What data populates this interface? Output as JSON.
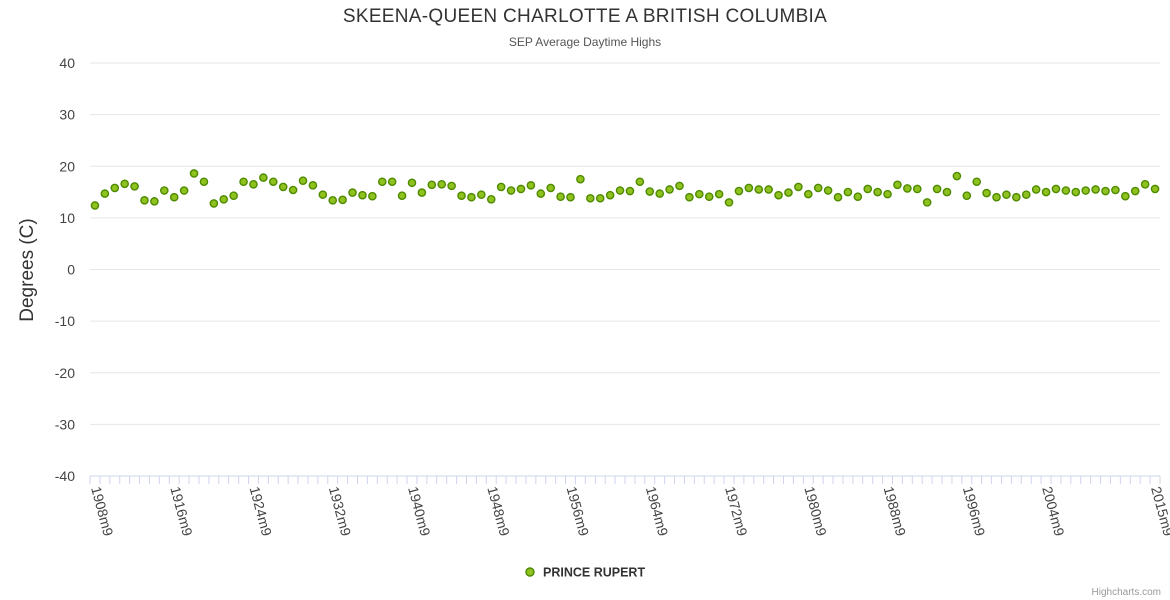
{
  "chart_data": {
    "type": "scatter",
    "title": "SKEENA-QUEEN CHARLOTTE A BRITISH COLUMBIA",
    "subtitle": "SEP Average Daytime Highs",
    "ylabel": "Degrees (C)",
    "xlabel": "",
    "ylim": [
      -40,
      40
    ],
    "yticks": [
      -40,
      -30,
      -20,
      -10,
      0,
      10,
      20,
      30,
      40
    ],
    "xticks": [
      "1908m9",
      "1916m9",
      "1924m9",
      "1932m9",
      "1940m9",
      "1948m9",
      "1956m9",
      "1964m9",
      "1972m9",
      "1980m9",
      "1988m9",
      "1996m9",
      "2004m9",
      "2015m9"
    ],
    "grid": true,
    "legend": "bottom-center",
    "colors": {
      "marker_fill": "#90c21f",
      "marker_stroke": "#4d8a00",
      "grid": "#e6e6e6",
      "axis": "#ccd6eb"
    },
    "series": [
      {
        "name": "PRINCE RUPERT",
        "x": [
          "1908m9",
          "1909m9",
          "1910m9",
          "1911m9",
          "1912m9",
          "1913m9",
          "1914m9",
          "1915m9",
          "1916m9",
          "1917m9",
          "1918m9",
          "1919m9",
          "1920m9",
          "1921m9",
          "1922m9",
          "1923m9",
          "1924m9",
          "1925m9",
          "1926m9",
          "1927m9",
          "1928m9",
          "1929m9",
          "1930m9",
          "1931m9",
          "1932m9",
          "1933m9",
          "1934m9",
          "1935m9",
          "1936m9",
          "1937m9",
          "1938m9",
          "1939m9",
          "1940m9",
          "1941m9",
          "1942m9",
          "1943m9",
          "1944m9",
          "1945m9",
          "1946m9",
          "1947m9",
          "1948m9",
          "1949m9",
          "1950m9",
          "1951m9",
          "1952m9",
          "1953m9",
          "1954m9",
          "1955m9",
          "1956m9",
          "1957m9",
          "1958m9",
          "1959m9",
          "1960m9",
          "1961m9",
          "1962m9",
          "1963m9",
          "1964m9",
          "1965m9",
          "1966m9",
          "1967m9",
          "1968m9",
          "1969m9",
          "1970m9",
          "1971m9",
          "1972m9",
          "1973m9",
          "1974m9",
          "1975m9",
          "1976m9",
          "1977m9",
          "1978m9",
          "1979m9",
          "1980m9",
          "1981m9",
          "1982m9",
          "1983m9",
          "1984m9",
          "1985m9",
          "1986m9",
          "1987m9",
          "1988m9",
          "1989m9",
          "1990m9",
          "1991m9",
          "1992m9",
          "1993m9",
          "1994m9",
          "1995m9",
          "1996m9",
          "1997m9",
          "1998m9",
          "1999m9",
          "2000m9",
          "2001m9",
          "2002m9",
          "2003m9",
          "2004m9",
          "2005m9",
          "2006m9",
          "2007m9",
          "2008m9",
          "2009m9",
          "2010m9",
          "2011m9",
          "2012m9",
          "2013m9",
          "2014m9",
          "2015m9"
        ],
        "values": [
          12.4,
          14.7,
          15.8,
          16.6,
          16.1,
          13.4,
          13.2,
          15.3,
          14.0,
          15.3,
          18.6,
          17.0,
          12.8,
          13.6,
          14.3,
          17.0,
          16.5,
          17.8,
          17.0,
          16.0,
          15.4,
          17.2,
          16.3,
          14.5,
          13.4,
          13.5,
          14.9,
          14.4,
          14.2,
          17.0,
          17.0,
          14.3,
          16.8,
          14.9,
          16.4,
          16.5,
          16.2,
          14.3,
          14.0,
          14.5,
          13.6,
          16.0,
          15.3,
          15.6,
          16.3,
          14.7,
          15.8,
          14.1,
          14.0,
          17.5,
          13.8,
          13.8,
          14.4,
          15.3,
          15.2,
          17.0,
          15.1,
          14.7,
          15.5,
          16.2,
          14.0,
          14.6,
          14.1,
          14.6,
          13.0,
          15.2,
          15.8,
          15.5,
          15.5,
          14.4,
          14.9,
          16.0,
          14.6,
          15.8,
          15.3,
          14.0,
          15.0,
          14.1,
          15.6,
          15.0,
          14.6,
          16.4,
          15.7,
          15.6,
          13.0,
          15.6,
          15.0,
          18.1,
          14.3,
          17.0,
          14.8,
          14.0,
          14.5,
          14.0,
          14.5,
          15.5,
          15.0,
          15.6,
          15.3,
          15.0,
          15.3,
          15.5,
          15.2,
          15.4,
          14.2,
          15.2,
          16.5,
          15.6
        ]
      }
    ]
  },
  "credit": "Highcharts.com"
}
